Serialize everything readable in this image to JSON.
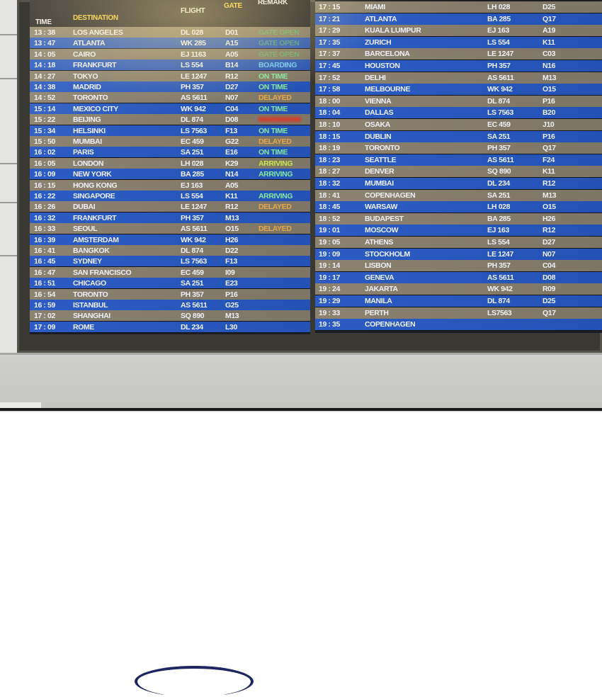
{
  "board": {
    "headers": {
      "time": "TIME",
      "destination": "DESTINATION",
      "flight": "FLIGHT",
      "gate": "GATE",
      "remark": "REMARK"
    },
    "remark_colors": {
      "gate-open": "#5ccf6a",
      "boarding": "#6ec6f2",
      "on-time": "#86e6a0",
      "delayed": "#e6a94a",
      "arriving": "#c9e64a",
      "cancelled": "#d83a2a"
    },
    "row_colors": {
      "taupe": "#8c8270",
      "blue": "#2c5cc4"
    },
    "left_rows": [
      {
        "time": "13 : 38",
        "destination": "LOS ANGELES",
        "flight": "DL 028",
        "gate": "D01",
        "remark": "GATE OPEN",
        "status": "gate-open"
      },
      {
        "time": "13 : 47",
        "destination": "ATLANTA",
        "flight": "WK 285",
        "gate": "A15",
        "remark": "GATE OPEN",
        "status": "gate-open"
      },
      {
        "time": "14 : 05",
        "destination": "CAIRO",
        "flight": "EJ 1163",
        "gate": "A05",
        "remark": "GATE OPEN",
        "status": "gate-open"
      },
      {
        "time": "14 : 18",
        "destination": "FRANKFURT",
        "flight": "LS 554",
        "gate": "B14",
        "remark": "BOARDING",
        "status": "boarding"
      },
      {
        "time": "14 : 27",
        "destination": "TOKYO",
        "flight": "LE 1247",
        "gate": "R12",
        "remark": "ON TIME",
        "status": "on-time"
      },
      {
        "time": "14 : 38",
        "destination": "MADRID",
        "flight": "PH 357",
        "gate": "D27",
        "remark": "ON TIME",
        "status": "on-time"
      },
      {
        "time": "14 : 52",
        "destination": "TORONTO",
        "flight": "AS 5611",
        "gate": "N07",
        "remark": "DELAYED",
        "status": "delayed"
      },
      {
        "time": "15 : 14",
        "destination": "MEXICO CITY",
        "flight": "WK 942",
        "gate": "C04",
        "remark": "ON TIME",
        "status": "on-time"
      },
      {
        "time": "15 : 22",
        "destination": "BEIJING",
        "flight": "DL 874",
        "gate": "D08",
        "remark": "",
        "status": "cancelled"
      },
      {
        "time": "15 : 34",
        "destination": "HELSINKI",
        "flight": "LS 7563",
        "gate": "F13",
        "remark": "ON TIME",
        "status": "on-time"
      },
      {
        "time": "15 : 50",
        "destination": "MUMBAI",
        "flight": "EC 459",
        "gate": "G22",
        "remark": "DELAYED",
        "status": "delayed"
      },
      {
        "time": "16 : 02",
        "destination": "PARIS",
        "flight": "SA 251",
        "gate": "E16",
        "remark": "ON TIME",
        "status": "on-time"
      },
      {
        "time": "16 : 05",
        "destination": "LONDON",
        "flight": "LH 028",
        "gate": "K29",
        "remark": "ARRIVING",
        "status": "arriving"
      },
      {
        "time": "16 : 09",
        "destination": "NEW YORK",
        "flight": "BA 285",
        "gate": "N14",
        "remark": "ARRIVING",
        "status": "on-time"
      },
      {
        "time": "16 : 15",
        "destination": "HONG KONG",
        "flight": "EJ 163",
        "gate": "A05",
        "remark": "",
        "status": ""
      },
      {
        "time": "16 : 22",
        "destination": "SINGAPORE",
        "flight": "LS 554",
        "gate": "K11",
        "remark": "ARRIVING",
        "status": "on-time"
      },
      {
        "time": "16 : 26",
        "destination": "DUBAI",
        "flight": "LE 1247",
        "gate": "R12",
        "remark": "DELAYED",
        "status": "delayed"
      },
      {
        "time": "16 : 32",
        "destination": "FRANKFURT",
        "flight": "PH 357",
        "gate": "M13",
        "remark": "",
        "status": ""
      },
      {
        "time": "16 : 33",
        "destination": "SEOUL",
        "flight": "AS 5611",
        "gate": "O15",
        "remark": "DELAYED",
        "status": "delayed"
      },
      {
        "time": "16 : 39",
        "destination": "AMSTERDAM",
        "flight": "WK 942",
        "gate": "H26",
        "remark": "",
        "status": ""
      },
      {
        "time": "16 : 41",
        "destination": "BANGKOK",
        "flight": "DL 874",
        "gate": "D22",
        "remark": "",
        "status": ""
      },
      {
        "time": "16 : 45",
        "destination": "SYDNEY",
        "flight": "LS 7563",
        "gate": "F13",
        "remark": "",
        "status": ""
      },
      {
        "time": "16 : 47",
        "destination": "SAN FRANCISCO",
        "flight": "EC 459",
        "gate": "I09",
        "remark": "",
        "status": ""
      },
      {
        "time": "16 : 51",
        "destination": "CHICAGO",
        "flight": "SA 251",
        "gate": "E23",
        "remark": "",
        "status": ""
      },
      {
        "time": "16 : 54",
        "destination": "TORONTO",
        "flight": "PH 357",
        "gate": "P16",
        "remark": "",
        "status": ""
      },
      {
        "time": "16 : 59",
        "destination": "ISTANBUL",
        "flight": "AS 5611",
        "gate": "G25",
        "remark": "",
        "status": ""
      },
      {
        "time": "17 : 02",
        "destination": "SHANGHAI",
        "flight": "SQ 890",
        "gate": "M13",
        "remark": "",
        "status": ""
      },
      {
        "time": "17 : 09",
        "destination": "ROME",
        "flight": "DL 234",
        "gate": "L30",
        "remark": "",
        "status": ""
      }
    ],
    "right_rows": [
      {
        "time": "17 : 15",
        "destination": "MIAMI",
        "flight": "LH 028",
        "gate": "D25"
      },
      {
        "time": "17 : 21",
        "destination": "ATLANTA",
        "flight": "BA 285",
        "gate": "Q17"
      },
      {
        "time": "17 : 29",
        "destination": "KUALA LUMPUR",
        "flight": "EJ 163",
        "gate": "A19"
      },
      {
        "time": "17 : 35",
        "destination": "ZURICH",
        "flight": "LS 554",
        "gate": "K11"
      },
      {
        "time": "17 : 37",
        "destination": "BARCELONA",
        "flight": "LE 1247",
        "gate": "C03"
      },
      {
        "time": "17 : 45",
        "destination": "HOUSTON",
        "flight": "PH 357",
        "gate": "N16"
      },
      {
        "time": "17 : 52",
        "destination": "DELHI",
        "flight": "AS 5611",
        "gate": "M13"
      },
      {
        "time": "17 : 58",
        "destination": "MELBOURNE",
        "flight": "WK 942",
        "gate": "O15"
      },
      {
        "time": "18 : 00",
        "destination": "VIENNA",
        "flight": "DL 874",
        "gate": "P16"
      },
      {
        "time": "18 : 04",
        "destination": "DALLAS",
        "flight": "LS 7563",
        "gate": "B20"
      },
      {
        "time": "18 : 10",
        "destination": "OSAKA",
        "flight": "EC 459",
        "gate": "J10"
      },
      {
        "time": "18 : 15",
        "destination": "DUBLIN",
        "flight": "SA 251",
        "gate": "P16"
      },
      {
        "time": "18 : 19",
        "destination": "TORONTO",
        "flight": "PH 357",
        "gate": "Q17"
      },
      {
        "time": "18 : 23",
        "destination": "SEATTLE",
        "flight": "AS 5611",
        "gate": "F24"
      },
      {
        "time": "18 : 27",
        "destination": "DENVER",
        "flight": "SQ 890",
        "gate": "K11"
      },
      {
        "time": "18 : 32",
        "destination": "MUMBAI",
        "flight": "DL 234",
        "gate": "R12"
      },
      {
        "time": "18 : 41",
        "destination": "COPENHAGEN",
        "flight": "SA 251",
        "gate": "M13"
      },
      {
        "time": "18 : 45",
        "destination": "WARSAW",
        "flight": "LH 028",
        "gate": "O15"
      },
      {
        "time": "18 : 52",
        "destination": "BUDAPEST",
        "flight": "BA 285",
        "gate": "H26"
      },
      {
        "time": "19 : 01",
        "destination": "MOSCOW",
        "flight": "EJ 163",
        "gate": "R12"
      },
      {
        "time": "19 : 05",
        "destination": "ATHENS",
        "flight": "LS 554",
        "gate": "D27"
      },
      {
        "time": "19 : 09",
        "destination": "STOCKHOLM",
        "flight": "LE 1247",
        "gate": "N07"
      },
      {
        "time": "19 : 14",
        "destination": "LISBON",
        "flight": "PH 357",
        "gate": "C04"
      },
      {
        "time": "19 : 17",
        "destination": "GENEVA",
        "flight": "AS 5611",
        "gate": "D08"
      },
      {
        "time": "19 : 24",
        "destination": "JAKARTA",
        "flight": "WK 942",
        "gate": "R09"
      },
      {
        "time": "19 : 29",
        "destination": "MANILA",
        "flight": "DL 874",
        "gate": "D25"
      },
      {
        "time": "19 : 33",
        "destination": "PERTH",
        "flight": "LS7563",
        "gate": "Q17"
      },
      {
        "time": "19 : 35",
        "destination": "COPENHAGEN",
        "flight": "",
        "gate": ""
      }
    ]
  }
}
